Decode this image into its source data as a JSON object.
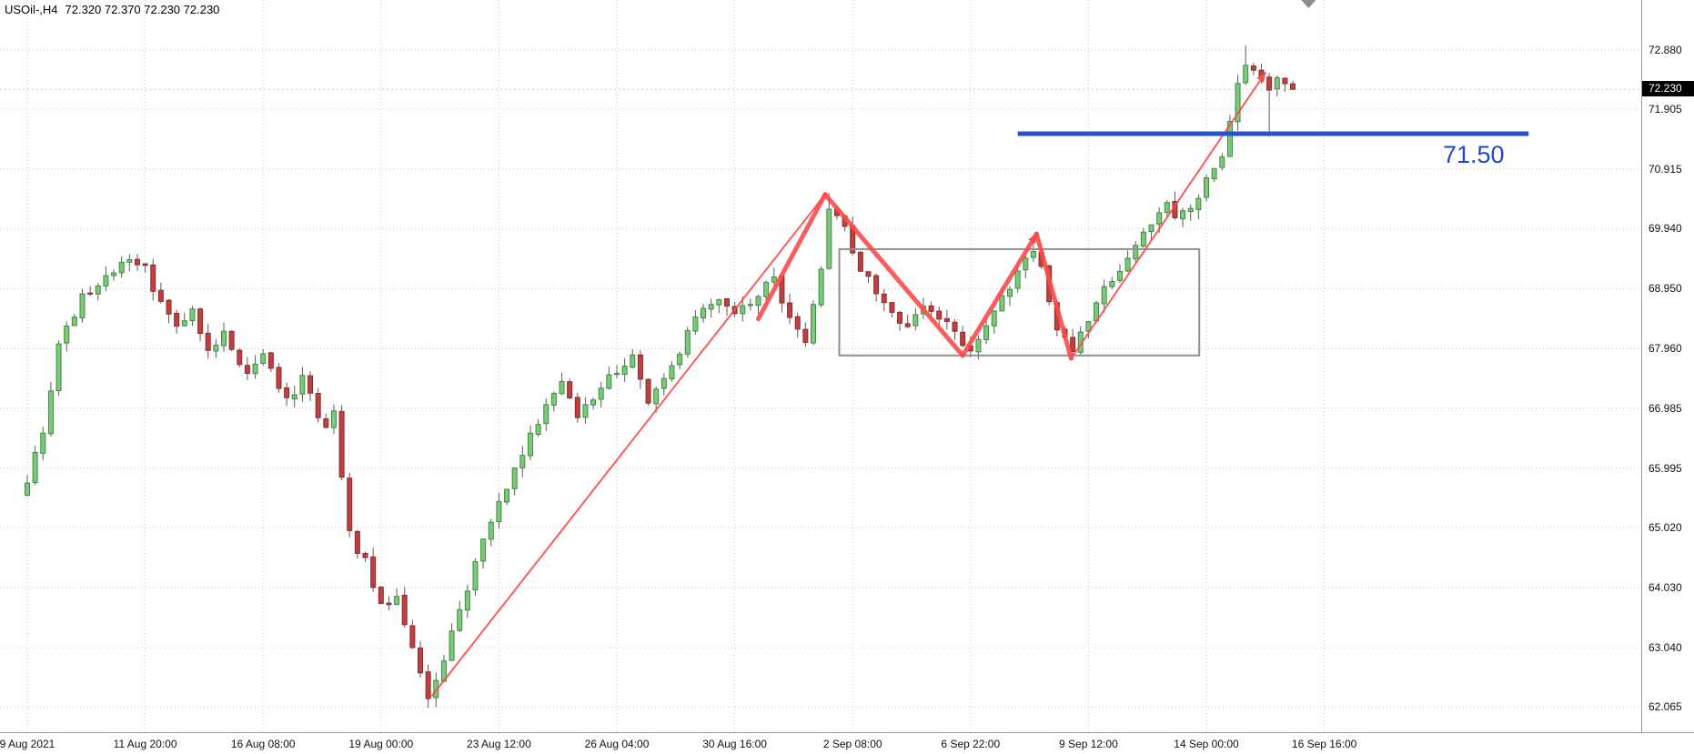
{
  "header": {
    "symbol_period": "USOil-,H4",
    "ohlc": "72.320 72.370 72.230 72.230"
  },
  "current_price_label": "72.230",
  "axes": {
    "y_labels": [
      "72.880",
      "71.905",
      "70.915",
      "69.940",
      "68.950",
      "67.960",
      "66.985",
      "65.995",
      "65.020",
      "64.030",
      "63.040",
      "62.065"
    ],
    "x_labels": [
      "9 Aug 2021",
      "11 Aug 20:00",
      "16 Aug 08:00",
      "19 Aug 00:00",
      "23 Aug 12:00",
      "26 Aug 04:00",
      "30 Aug 16:00",
      "2 Sep 08:00",
      "6 Sep 22:00",
      "9 Sep 12:00",
      "14 Sep 00:00",
      "16 Sep 16:00"
    ]
  },
  "chart_data": {
    "type": "candlestick",
    "symbol": "USOil-",
    "timeframe": "H4",
    "title": "USOil-,H4",
    "current_candle_ohlc": [
      72.32,
      72.37,
      72.23,
      72.23
    ],
    "current_price": 72.23,
    "y_axis_ticks": [
      72.88,
      71.905,
      70.915,
      69.94,
      68.95,
      67.96,
      66.985,
      65.995,
      65.02,
      64.03,
      63.04,
      62.065
    ],
    "x_tick_indices": [
      0,
      15,
      30,
      45,
      60,
      75,
      90,
      105,
      120,
      135,
      150,
      165
    ],
    "price_view_range": [
      61.65,
      73.7
    ],
    "candle_count": 162,
    "grid": "dotted",
    "close_waypoints": [
      [
        0,
        65.8
      ],
      [
        1,
        66.2
      ],
      [
        2,
        66.5
      ],
      [
        4,
        68.0
      ],
      [
        7,
        68.8
      ],
      [
        10,
        69.2
      ],
      [
        13,
        69.4
      ],
      [
        15,
        69.25
      ],
      [
        17,
        68.7
      ],
      [
        19,
        68.3
      ],
      [
        21,
        68.6
      ],
      [
        23,
        67.9
      ],
      [
        25,
        68.3
      ],
      [
        28,
        67.5
      ],
      [
        30,
        67.8
      ],
      [
        33,
        67.1
      ],
      [
        35,
        67.45
      ],
      [
        38,
        66.6
      ],
      [
        39,
        66.9
      ],
      [
        41,
        64.9
      ],
      [
        43,
        64.45
      ],
      [
        45,
        63.7
      ],
      [
        47,
        63.9
      ],
      [
        49,
        63.0
      ],
      [
        51,
        62.2
      ],
      [
        53,
        62.9
      ],
      [
        55,
        63.6
      ],
      [
        57,
        64.5
      ],
      [
        59,
        65.1
      ],
      [
        61,
        65.7
      ],
      [
        64,
        66.5
      ],
      [
        66,
        67.0
      ],
      [
        68,
        67.45
      ],
      [
        70,
        66.9
      ],
      [
        73,
        67.3
      ],
      [
        75,
        67.6
      ],
      [
        77,
        67.85
      ],
      [
        79,
        67.1
      ],
      [
        81,
        67.45
      ],
      [
        84,
        68.2
      ],
      [
        86,
        68.6
      ],
      [
        88,
        68.8
      ],
      [
        90,
        68.5
      ],
      [
        93,
        68.9
      ],
      [
        95,
        69.1
      ],
      [
        97,
        68.4
      ],
      [
        99,
        68.0
      ],
      [
        101,
        69.3
      ],
      [
        102,
        70.3
      ],
      [
        104,
        69.9
      ],
      [
        106,
        69.3
      ],
      [
        108,
        68.9
      ],
      [
        110,
        68.6
      ],
      [
        112,
        68.3
      ],
      [
        114,
        68.7
      ],
      [
        116,
        68.5
      ],
      [
        118,
        68.2
      ],
      [
        120,
        67.95
      ],
      [
        122,
        68.4
      ],
      [
        124,
        68.8
      ],
      [
        126,
        69.2
      ],
      [
        128,
        69.6
      ],
      [
        129,
        69.3
      ],
      [
        131,
        68.3
      ],
      [
        133,
        67.95
      ],
      [
        135,
        68.4
      ],
      [
        137,
        68.9
      ],
      [
        139,
        69.3
      ],
      [
        141,
        69.7
      ],
      [
        143,
        70.0
      ],
      [
        145,
        70.3
      ],
      [
        146,
        70.05
      ],
      [
        148,
        70.3
      ],
      [
        150,
        70.7
      ],
      [
        152,
        71.2
      ],
      [
        153,
        71.7
      ],
      [
        154,
        72.3
      ],
      [
        155,
        72.7
      ],
      [
        156,
        72.6
      ],
      [
        157,
        72.4
      ],
      [
        158,
        72.15
      ],
      [
        159,
        72.5
      ],
      [
        160,
        72.35
      ],
      [
        161,
        72.23
      ]
    ],
    "forced_extremes": [
      {
        "index": 13,
        "high": 69.52
      },
      {
        "index": 51,
        "low": 62.05
      },
      {
        "index": 102,
        "high": 70.52
      },
      {
        "index": 120,
        "low": 67.82
      },
      {
        "index": 128,
        "high": 69.8
      },
      {
        "index": 133,
        "low": 67.78
      },
      {
        "index": 155,
        "high": 72.95
      },
      {
        "index": 158,
        "low": 71.45
      }
    ],
    "noise": {
      "seed": 9,
      "close_jitter": 0.085,
      "wick": 0.16
    },
    "swings": [
      {
        "label": "high 10-11 Aug",
        "price": 69.5
      },
      {
        "label": "low 20 Aug",
        "price": 62.05
      },
      {
        "label": "high 2 Sep",
        "price": 70.5
      },
      {
        "label": "range low 6 Sep",
        "price": 67.85
      },
      {
        "label": "range high 8 Sep",
        "price": 69.85
      },
      {
        "label": "range low 9 Sep",
        "price": 67.8
      },
      {
        "label": "high 15-16 Sep",
        "price": 72.95
      },
      {
        "label": "last close",
        "price": 72.23
      }
    ],
    "annotations": {
      "horizontal_level": {
        "price": 71.5,
        "from_index": 126,
        "to_index": 191,
        "color": "#2653cc",
        "width": 5,
        "label": "71.50",
        "label_index": 184,
        "label_color": "#2147cf"
      },
      "rectangle": {
        "from_index": 103.3,
        "to_index": 149.1,
        "top_price": 69.6,
        "bottom_price": 67.85,
        "color": "#8f8f8f",
        "width": 2
      },
      "trendline_color": "#fa4b4b",
      "trendlines": [
        {
          "from": [
            51.5,
            62.25
          ],
          "to": [
            101.5,
            70.5
          ],
          "width": 2,
          "arrow": false
        },
        {
          "from": [
            93.0,
            68.45
          ],
          "to": [
            101.5,
            70.5
          ],
          "width": 5,
          "arrow": false
        },
        {
          "from": [
            101.5,
            70.5
          ],
          "to": [
            119.0,
            67.85
          ],
          "width": 5,
          "arrow": false
        },
        {
          "from": [
            119.0,
            67.85
          ],
          "to": [
            128.4,
            69.85
          ],
          "width": 5,
          "arrow": true
        },
        {
          "from": [
            128.4,
            69.85
          ],
          "to": [
            132.8,
            67.8
          ],
          "width": 5,
          "arrow": false
        },
        {
          "from": [
            132.8,
            67.8
          ],
          "to": [
            157.5,
            72.5
          ],
          "width": 2,
          "arrow": true
        }
      ],
      "shift_marker": {
        "index": 163,
        "color": "#8c8c8c"
      },
      "current_price_line": {
        "price": 72.23,
        "style": "dashed",
        "color": "#c9c9c9"
      }
    },
    "colors": {
      "background": "#ffffff",
      "grid": "#c9c9c9",
      "bull_fill": "#7ec87e",
      "bull_border": "#3c8c3c",
      "bear_fill": "#bf4040",
      "bear_border": "#8f2a2a",
      "wick": "#5a5a5a",
      "axis_text": "#111111",
      "price_tag_bg": "#000000",
      "price_tag_fg": "#ffffff"
    }
  }
}
